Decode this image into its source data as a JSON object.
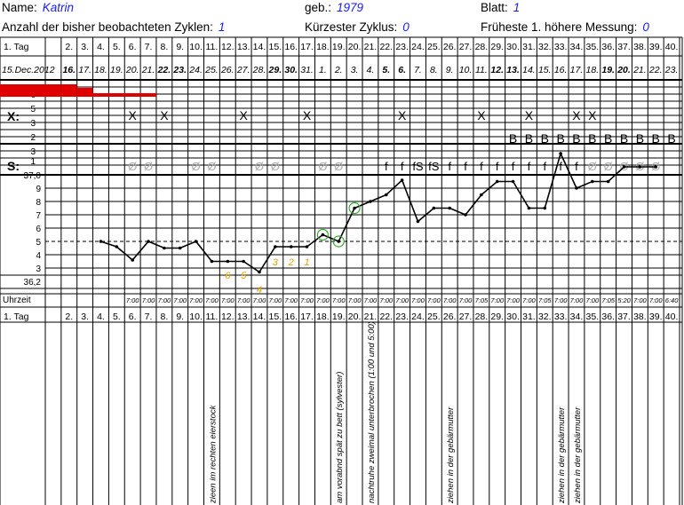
{
  "header": {
    "name_label": "Name:",
    "name_value": "Katrin",
    "birth_label": "geb.:",
    "birth_value": "1979",
    "sheet_label": "Blatt:",
    "sheet_value": "1",
    "cycles_label": "Anzahl der bisher beobachteten Zyklen:",
    "cycles_value": "1",
    "shortest_label": "Kürzester Zyklus:",
    "shortest_value": "0",
    "earliest_label": "Früheste 1. höhere Messung:",
    "earliest_value": "0"
  },
  "row_labels": {
    "day": "1. Tag",
    "x_row": "X:",
    "s_row": "S:",
    "temp_base": "37,0",
    "temp_low": "36,2",
    "time": "Uhrzeit",
    "day_bottom": "1. Tag",
    "bleed_scale": [
      "6",
      "5"
    ],
    "x_scale": [
      "5",
      "4",
      "3",
      "2",
      "1"
    ],
    "s_scale": [
      "4",
      "3",
      "2",
      "1"
    ],
    "temp_ticks": [
      "9",
      "8",
      "7",
      "6",
      "5",
      "4",
      "3"
    ]
  },
  "day_numbers": [
    "2.",
    "3.",
    "4.",
    "5.",
    "6.",
    "7.",
    "8.",
    "9.",
    "10.",
    "11.",
    "12.",
    "13.",
    "14.",
    "15.",
    "16.",
    "17.",
    "18.",
    "19.",
    "20.",
    "21.",
    "22.",
    "23.",
    "24.",
    "25.",
    "26.",
    "27.",
    "28.",
    "29.",
    "30.",
    "31.",
    "32.",
    "33.",
    "34.",
    "35.",
    "36.",
    "37.",
    "38.",
    "39.",
    "40."
  ],
  "dates": [
    {
      "t": "15.Dec.2012",
      "b": false
    },
    {
      "t": "16.",
      "b": true
    },
    {
      "t": "17.",
      "b": false
    },
    {
      "t": "18.",
      "b": false
    },
    {
      "t": "19.",
      "b": false
    },
    {
      "t": "20.",
      "b": false
    },
    {
      "t": "21.",
      "b": false
    },
    {
      "t": "22.",
      "b": true
    },
    {
      "t": "23.",
      "b": true
    },
    {
      "t": "24.",
      "b": false
    },
    {
      "t": "25.",
      "b": false
    },
    {
      "t": "26.",
      "b": false
    },
    {
      "t": "27.",
      "b": false
    },
    {
      "t": "28.",
      "b": false
    },
    {
      "t": "29.",
      "b": true
    },
    {
      "t": "30.",
      "b": true
    },
    {
      "t": "31.",
      "b": false
    },
    {
      "t": "1.",
      "b": false
    },
    {
      "t": "2.",
      "b": false
    },
    {
      "t": "3.",
      "b": false
    },
    {
      "t": "4.",
      "b": false
    },
    {
      "t": "5.",
      "b": true
    },
    {
      "t": "6.",
      "b": true
    },
    {
      "t": "7.",
      "b": false
    },
    {
      "t": "8.",
      "b": false
    },
    {
      "t": "9.",
      "b": false
    },
    {
      "t": "10.",
      "b": false
    },
    {
      "t": "11.",
      "b": false
    },
    {
      "t": "12.",
      "b": true
    },
    {
      "t": "13.",
      "b": true
    },
    {
      "t": "14.",
      "b": false
    },
    {
      "t": "15.",
      "b": false
    },
    {
      "t": "16.",
      "b": false
    },
    {
      "t": "17.",
      "b": false
    },
    {
      "t": "18.",
      "b": false
    },
    {
      "t": "19.",
      "b": true
    },
    {
      "t": "20.",
      "b": true
    },
    {
      "t": "21.",
      "b": false
    },
    {
      "t": "22.",
      "b": false
    },
    {
      "t": "23.",
      "b": false
    }
  ],
  "times": [
    "",
    "",
    "",
    "",
    "",
    "7:00",
    "7:00",
    "7:00",
    "7:00",
    "7:00",
    "7:00",
    "7:00",
    "7:00",
    "7:00",
    "7:00",
    "7:00",
    "7:00",
    "7:00",
    "7:00",
    "7:00",
    "7:00",
    "7:00",
    "7:00",
    "7:00",
    "7:00",
    "7:00",
    "7:00",
    "7:05",
    "7:00",
    "7:00",
    "7:00",
    "7:05",
    "7:00",
    "7:00",
    "7:00",
    "7:05",
    "5:20",
    "7:00",
    "7:00",
    "6:40"
  ],
  "colors": {
    "bleeding": "#e00000",
    "mucus_gray": "#aaaaaa",
    "mark_orange": "#e8a000",
    "circle_green": "#33aa33",
    "value_blue": "#1a1aff"
  },
  "chart_data": {
    "type": "line",
    "title": "",
    "x": [
      1,
      2,
      3,
      4,
      5,
      6,
      7,
      8,
      9,
      10,
      11,
      12,
      13,
      14,
      15,
      16,
      17,
      18,
      19,
      20,
      21,
      22,
      23,
      24,
      25,
      26,
      27,
      28,
      29,
      30,
      31,
      32,
      33,
      34,
      35,
      36,
      37,
      38,
      39,
      40
    ],
    "ylabel": "",
    "ylim": [
      36.2,
      37.0
    ],
    "temperature": [
      null,
      null,
      null,
      36.5,
      36.46,
      36.36,
      36.5,
      36.45,
      36.45,
      36.5,
      36.35,
      36.35,
      36.35,
      36.27,
      36.46,
      36.46,
      36.46,
      36.55,
      36.5,
      36.75,
      36.8,
      36.85,
      36.96,
      36.65,
      36.75,
      36.75,
      36.7,
      36.85,
      36.95,
      36.95,
      36.75,
      36.75,
      37.16,
      36.9,
      36.95,
      36.95,
      37.06,
      37.06,
      37.06,
      null
    ],
    "circled_days": [
      18,
      19,
      20
    ],
    "count_labels": [
      {
        "day": 12,
        "text": "6"
      },
      {
        "day": 13,
        "text": "5"
      },
      {
        "day": 14,
        "text": "4"
      },
      {
        "day": 15,
        "text": "3"
      },
      {
        "day": 16,
        "text": "2"
      },
      {
        "day": 17,
        "text": "1"
      }
    ],
    "bleeding": [
      {
        "day": 1,
        "level": 6
      },
      {
        "day": 2,
        "level": 6
      },
      {
        "day": 3,
        "level": 6
      },
      {
        "day": 4,
        "level": 6
      },
      {
        "day": 5,
        "level": 6
      },
      {
        "day": 6,
        "level": 6
      },
      {
        "day": 7,
        "level": 6
      }
    ],
    "x_marks": [
      {
        "day": 6,
        "text": "X"
      },
      {
        "day": 8,
        "text": "X"
      },
      {
        "day": 13,
        "text": "X"
      },
      {
        "day": 17,
        "text": "X"
      },
      {
        "day": 23,
        "text": "X"
      },
      {
        "day": 28,
        "text": "X"
      },
      {
        "day": 31,
        "text": "X"
      },
      {
        "day": 34,
        "text": "X"
      },
      {
        "day": 35,
        "text": "X"
      }
    ],
    "b_marks": [
      {
        "day": 30,
        "text": "B"
      },
      {
        "day": 31,
        "text": "B"
      },
      {
        "day": 32,
        "text": "B"
      },
      {
        "day": 33,
        "text": "B"
      },
      {
        "day": 34,
        "text": "B"
      },
      {
        "day": 35,
        "text": "B"
      },
      {
        "day": 36,
        "text": "B"
      },
      {
        "day": 37,
        "text": "B"
      },
      {
        "day": 38,
        "text": "B"
      },
      {
        "day": 39,
        "text": "B"
      },
      {
        "day": 40,
        "text": "B"
      }
    ],
    "s_marks": [
      {
        "day": 6,
        "text": "Ø",
        "c": "g"
      },
      {
        "day": 7,
        "text": "Ø",
        "c": "g"
      },
      {
        "day": 10,
        "text": "Ø",
        "c": "g"
      },
      {
        "day": 11,
        "text": "Ø",
        "c": "g"
      },
      {
        "day": 14,
        "text": "Ø",
        "c": "g"
      },
      {
        "day": 15,
        "text": "Ø",
        "c": "g"
      },
      {
        "day": 18,
        "text": "Ø",
        "c": "g"
      },
      {
        "day": 19,
        "text": "Ø",
        "c": "g"
      },
      {
        "day": 22,
        "text": "f",
        "c": "k"
      },
      {
        "day": 23,
        "text": "f",
        "c": "k"
      },
      {
        "day": 24,
        "text": "fS",
        "c": "k"
      },
      {
        "day": 25,
        "text": "fS",
        "c": "k"
      },
      {
        "day": 26,
        "text": "f",
        "c": "k"
      },
      {
        "day": 27,
        "text": "f",
        "c": "k"
      },
      {
        "day": 28,
        "text": "f",
        "c": "k"
      },
      {
        "day": 29,
        "text": "f",
        "c": "k"
      },
      {
        "day": 30,
        "text": "f",
        "c": "k"
      },
      {
        "day": 31,
        "text": "f",
        "c": "k"
      },
      {
        "day": 32,
        "text": "f",
        "c": "k"
      },
      {
        "day": 33,
        "text": "f",
        "c": "k"
      },
      {
        "day": 34,
        "text": "f",
        "c": "k"
      },
      {
        "day": 35,
        "text": "Ø",
        "c": "g"
      },
      {
        "day": 36,
        "text": "Ø",
        "c": "g"
      },
      {
        "day": 37,
        "text": "Ø",
        "c": "g"
      },
      {
        "day": 38,
        "text": "Ø",
        "c": "g"
      },
      {
        "day": 39,
        "text": "Ø",
        "c": "g"
      }
    ],
    "notes": [
      {
        "day": 11,
        "text": "zieen im rechten eierstock"
      },
      {
        "day": 19,
        "text": "am vorabnd spät zu bett (sylvester)"
      },
      {
        "day": 21,
        "text": "nachtruhe zweimal unterbrochen (1:00 und 5:00)"
      },
      {
        "day": 26,
        "text": "ziehen in der gebärmutter"
      },
      {
        "day": 33,
        "text": "ziehen in der gebärmutter"
      },
      {
        "day": 34,
        "text": "ziehen in der gebärmutter"
      }
    ]
  }
}
